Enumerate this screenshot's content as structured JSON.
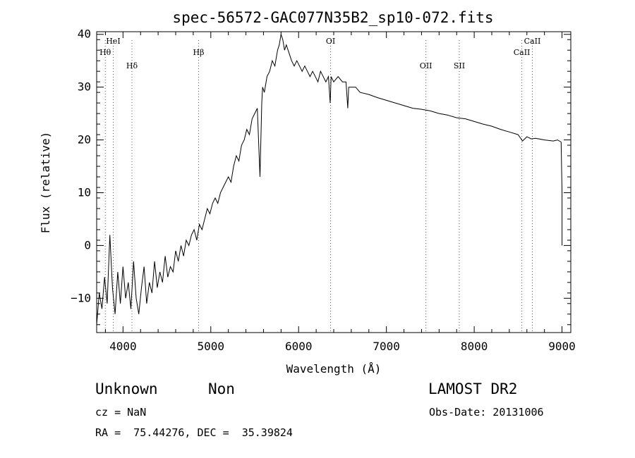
{
  "chart_data": {
    "type": "line",
    "title": "spec-56572-GAC077N35B2_sp10-072.fits",
    "xlabel": "Wavelength (Å)",
    "ylabel": "Flux (relative)",
    "xlim": [
      3700,
      9100
    ],
    "ylim": [
      -16.5,
      40.5
    ],
    "xticks": [
      4000,
      5000,
      6000,
      7000,
      8000,
      9000
    ],
    "xtick_labels": [
      "4000",
      "5000",
      "6000",
      "7000",
      "8000",
      "9000"
    ],
    "yticks": [
      -10,
      0,
      10,
      20,
      30,
      40
    ],
    "ytick_labels": [
      "−10",
      "0",
      "10",
      "20",
      "30",
      "40"
    ],
    "grid": false,
    "series": [
      {
        "x": [
          3700,
          3730,
          3760,
          3790,
          3820,
          3850,
          3880,
          3910,
          3940,
          3970,
          4000,
          4030,
          4060,
          4090,
          4120,
          4150,
          4180,
          4210,
          4240,
          4270,
          4300,
          4330,
          4360,
          4390,
          4420,
          4450,
          4480,
          4510,
          4540,
          4570,
          4600,
          4630,
          4660,
          4690,
          4720,
          4750,
          4780,
          4810,
          4840,
          4870,
          4900,
          4930,
          4960,
          4990,
          5020,
          5050,
          5080,
          5110,
          5140,
          5170,
          5200,
          5230,
          5260,
          5290,
          5320,
          5350,
          5380,
          5410,
          5440,
          5470,
          5500,
          5530,
          5560,
          5580,
          5590,
          5610,
          5640,
          5670,
          5700,
          5730,
          5760,
          5780,
          5800,
          5820,
          5840,
          5860,
          5880,
          5900,
          5920,
          5950,
          5980,
          6010,
          6040,
          6070,
          6100,
          6130,
          6160,
          6190,
          6220,
          6250,
          6280,
          6310,
          6340,
          6360,
          6370,
          6400,
          6450,
          6500,
          6540,
          6560,
          6570,
          6600,
          6650,
          6700,
          6800,
          6900,
          7000,
          7100,
          7200,
          7300,
          7400,
          7500,
          7600,
          7700,
          7800,
          7900,
          8000,
          8100,
          8200,
          8300,
          8400,
          8500,
          8550,
          8600,
          8650,
          8700,
          8800,
          8900,
          8950,
          8990,
          9000,
          9000
        ],
        "y": [
          -15,
          -9,
          -12,
          -6,
          -11,
          2,
          -8,
          -13,
          -5,
          -11,
          -4,
          -10,
          -7,
          -12,
          -3,
          -10,
          -13,
          -8,
          -4,
          -11,
          -7,
          -9,
          -3,
          -8,
          -5,
          -7,
          -2,
          -6,
          -4,
          -5,
          -1,
          -3,
          0,
          -2,
          1,
          0,
          2,
          3,
          1,
          4,
          3,
          5,
          7,
          6,
          8,
          9,
          8,
          10,
          11,
          12,
          13,
          12,
          15,
          17,
          16,
          19,
          20,
          22,
          21,
          24,
          25,
          26,
          13,
          27,
          30,
          29,
          32,
          33,
          35,
          34,
          37,
          38,
          40,
          39,
          37,
          38,
          37,
          36,
          35,
          34,
          35,
          34,
          33,
          34,
          33,
          32,
          33,
          32,
          31,
          33,
          32,
          31,
          32,
          27,
          32,
          31,
          32,
          31,
          31,
          26,
          30,
          30,
          30,
          29,
          28.6,
          28,
          27.5,
          27,
          26.5,
          26,
          25.8,
          25.5,
          25,
          24.7,
          24.2,
          24,
          23.5,
          23,
          22.6,
          22,
          21.5,
          21,
          19.8,
          20.6,
          20.2,
          20.3,
          20,
          19.8,
          20,
          19.6,
          10,
          0
        ]
      }
    ],
    "lines": [
      {
        "label": "HeI",
        "x": 3889
      },
      {
        "label": "Hθ",
        "x": 3798
      },
      {
        "label": "Hδ",
        "x": 4102
      },
      {
        "label": "Hβ",
        "x": 4861
      },
      {
        "label": "OI",
        "x": 6364
      },
      {
        "label": "OII",
        "x": 7450
      },
      {
        "label": "SII",
        "x": 7830
      },
      {
        "label": "CaII",
        "x": 8662
      },
      {
        "label": "CaII",
        "x": 8542
      }
    ]
  },
  "info": {
    "class": "Unknown",
    "subclass": "Non",
    "survey": "LAMOST DR2",
    "cz": "cz = NaN",
    "obs_date": "Obs-Date: 20131006",
    "coords": "RA =  75.44276, DEC =  35.39824"
  }
}
